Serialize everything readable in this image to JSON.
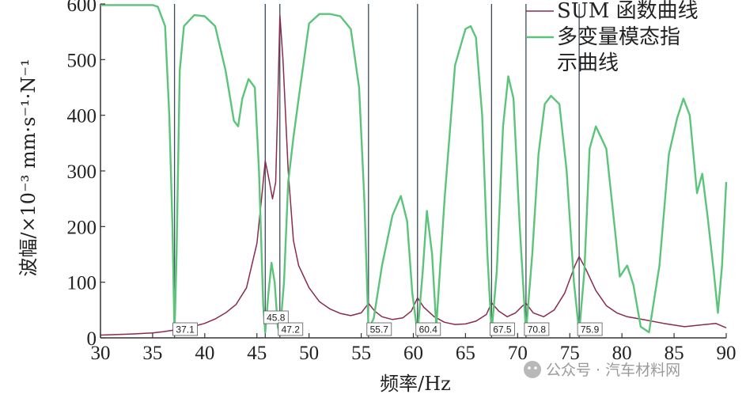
{
  "chart_data": {
    "type": "line",
    "xlabel": "频率/Hz",
    "ylabel": "波幅/×10⁻³ mm·s⁻¹·N⁻¹",
    "xlim": [
      30,
      90
    ],
    "ylim": [
      0,
      600
    ],
    "xticks": [
      "30",
      "35",
      "40",
      "45",
      "50",
      "55",
      "60",
      "65",
      "70",
      "75",
      "80",
      "85",
      "90"
    ],
    "yticks": [
      "0",
      "100",
      "200",
      "300",
      "400",
      "500",
      "600"
    ],
    "grid": false,
    "legend_position": "top-right",
    "series": [
      {
        "name": "SUM 函数曲线",
        "color": "#8a2a4e",
        "points": [
          [
            30,
            5
          ],
          [
            33,
            7
          ],
          [
            35,
            9
          ],
          [
            36,
            11
          ],
          [
            37,
            14
          ],
          [
            38,
            17
          ],
          [
            39,
            21
          ],
          [
            40,
            26
          ],
          [
            41,
            34
          ],
          [
            42,
            45
          ],
          [
            43,
            60
          ],
          [
            44,
            90
          ],
          [
            45,
            170
          ],
          [
            45.5,
            260
          ],
          [
            45.8,
            318
          ],
          [
            46.1,
            290
          ],
          [
            46.5,
            250
          ],
          [
            46.8,
            280
          ],
          [
            47.0,
            420
          ],
          [
            47.2,
            580
          ],
          [
            47.5,
            500
          ],
          [
            48,
            300
          ],
          [
            48.5,
            175
          ],
          [
            49,
            130
          ],
          [
            50,
            90
          ],
          [
            51,
            65
          ],
          [
            52,
            52
          ],
          [
            53,
            44
          ],
          [
            54,
            40
          ],
          [
            55,
            45
          ],
          [
            55.7,
            62
          ],
          [
            56.3,
            48
          ],
          [
            57,
            38
          ],
          [
            58,
            33
          ],
          [
            59,
            36
          ],
          [
            59.8,
            48
          ],
          [
            60.4,
            72
          ],
          [
            61,
            55
          ],
          [
            62,
            38
          ],
          [
            63,
            28
          ],
          [
            64,
            24
          ],
          [
            65,
            25
          ],
          [
            66,
            30
          ],
          [
            67,
            42
          ],
          [
            67.5,
            63
          ],
          [
            68.2,
            48
          ],
          [
            69,
            38
          ],
          [
            69.8,
            45
          ],
          [
            70.5,
            58
          ],
          [
            70.8,
            62
          ],
          [
            71.5,
            45
          ],
          [
            72.5,
            38
          ],
          [
            73.5,
            50
          ],
          [
            74.5,
            80
          ],
          [
            75.5,
            130
          ],
          [
            75.9,
            146
          ],
          [
            76.5,
            125
          ],
          [
            77.5,
            85
          ],
          [
            78.5,
            58
          ],
          [
            79.5,
            45
          ],
          [
            80.5,
            38
          ],
          [
            82,
            33
          ],
          [
            84,
            26
          ],
          [
            86,
            20
          ],
          [
            88,
            24
          ],
          [
            89,
            26
          ],
          [
            90,
            18
          ]
        ]
      },
      {
        "name": "多变量模态指示曲线",
        "color": "#5cc47a",
        "points": [
          [
            30,
            598
          ],
          [
            33,
            598
          ],
          [
            35,
            598
          ],
          [
            35.5,
            595
          ],
          [
            36.2,
            560
          ],
          [
            36.6,
            400
          ],
          [
            36.9,
            200
          ],
          [
            37.1,
            8
          ],
          [
            37.3,
            150
          ],
          [
            37.6,
            480
          ],
          [
            38,
            560
          ],
          [
            39,
            580
          ],
          [
            40,
            578
          ],
          [
            41,
            560
          ],
          [
            42,
            480
          ],
          [
            42.8,
            390
          ],
          [
            43.2,
            380
          ],
          [
            43.6,
            430
          ],
          [
            44.2,
            465
          ],
          [
            44.8,
            450
          ],
          [
            45.2,
            300
          ],
          [
            45.6,
            60
          ],
          [
            45.8,
            10
          ],
          [
            46.1,
            80
          ],
          [
            46.4,
            135
          ],
          [
            46.7,
            100
          ],
          [
            47.0,
            20
          ],
          [
            47.2,
            8
          ],
          [
            47.6,
            100
          ],
          [
            48.0,
            280
          ],
          [
            48.5,
            360
          ],
          [
            49,
            430
          ],
          [
            50,
            565
          ],
          [
            51,
            582
          ],
          [
            52,
            582
          ],
          [
            53,
            578
          ],
          [
            54,
            555
          ],
          [
            54.8,
            450
          ],
          [
            55.3,
            250
          ],
          [
            55.7,
            15
          ],
          [
            56.2,
            35
          ],
          [
            57,
            130
          ],
          [
            58,
            220
          ],
          [
            58.8,
            255
          ],
          [
            59.4,
            210
          ],
          [
            59.9,
            80
          ],
          [
            60.4,
            8
          ],
          [
            60.9,
            120
          ],
          [
            61.3,
            228
          ],
          [
            61.8,
            150
          ],
          [
            62.2,
            20
          ],
          [
            63,
            250
          ],
          [
            64,
            490
          ],
          [
            65,
            555
          ],
          [
            65.5,
            560
          ],
          [
            66,
            540
          ],
          [
            66.6,
            400
          ],
          [
            67.1,
            150
          ],
          [
            67.5,
            10
          ],
          [
            68,
            120
          ],
          [
            68.6,
            380
          ],
          [
            69.1,
            470
          ],
          [
            69.6,
            430
          ],
          [
            70.2,
            200
          ],
          [
            70.8,
            10
          ],
          [
            71.4,
            150
          ],
          [
            72,
            330
          ],
          [
            72.6,
            420
          ],
          [
            73.2,
            435
          ],
          [
            74,
            420
          ],
          [
            74.7,
            300
          ],
          [
            75.4,
            100
          ],
          [
            75.9,
            10
          ],
          [
            76.4,
            120
          ],
          [
            76.9,
            340
          ],
          [
            77.5,
            380
          ],
          [
            78.5,
            340
          ],
          [
            79.3,
            200
          ],
          [
            79.8,
            110
          ],
          [
            80.5,
            130
          ],
          [
            81.1,
            95
          ],
          [
            81.8,
            20
          ],
          [
            82.6,
            10
          ],
          [
            83.6,
            130
          ],
          [
            84.5,
            330
          ],
          [
            85.3,
            395
          ],
          [
            85.9,
            430
          ],
          [
            86.5,
            400
          ],
          [
            87.2,
            260
          ],
          [
            87.7,
            295
          ],
          [
            88.2,
            220
          ],
          [
            88.8,
            120
          ],
          [
            89.2,
            45
          ],
          [
            89.6,
            130
          ],
          [
            90,
            280
          ]
        ]
      }
    ],
    "peak_lines": [
      37.1,
      45.8,
      47.2,
      55.7,
      60.4,
      67.5,
      70.8,
      75.9
    ],
    "peak_labels": [
      "37.1",
      "45.8",
      "47.2",
      "55.7",
      "60.4",
      "67.5",
      "70.8",
      "75.9"
    ],
    "legend": [
      {
        "lines": [
          "SUM 函数曲线"
        ],
        "color": "#8a2a4e"
      },
      {
        "lines": [
          "多变量模态指",
          "示曲线"
        ],
        "color": "#5cc47a"
      }
    ]
  },
  "watermark": "公众号 · 汽车材料网"
}
